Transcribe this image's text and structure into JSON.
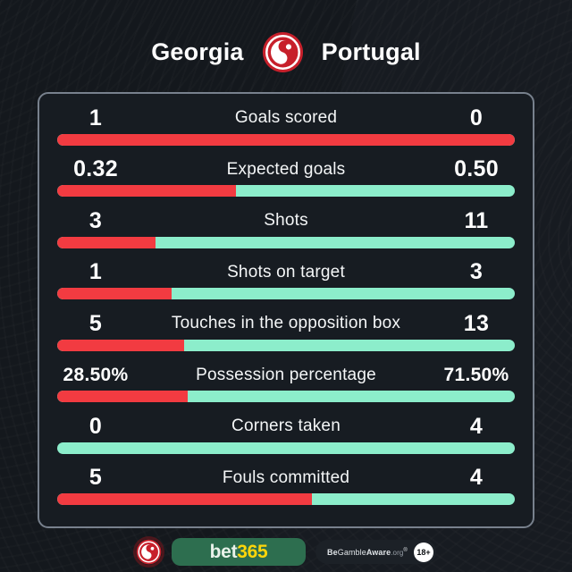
{
  "header": {
    "home_team": "Georgia",
    "away_team": "Portugal",
    "logo_icon": "bet365-swirl-icon"
  },
  "colors": {
    "home_bar_red": "#f23b41",
    "away_bar_teal": "#8cedcb",
    "card_border": "#78818d",
    "card_bg": "#171c22",
    "page_bg": "#14181d",
    "logo_red": "#c7202b",
    "bet365_green": "#2d6e4f",
    "bet365_yellow": "#ffd60a"
  },
  "stats": [
    {
      "label": "Goals scored",
      "home": "1",
      "away": "0",
      "home_pct": 100
    },
    {
      "label": "Expected goals",
      "home": "0.32",
      "away": "0.50",
      "home_pct": 39
    },
    {
      "label": "Shots",
      "home": "3",
      "away": "11",
      "home_pct": 21.4
    },
    {
      "label": "Shots on target",
      "home": "1",
      "away": "3",
      "home_pct": 25
    },
    {
      "label": "Touches in the opposition box",
      "home": "5",
      "away": "13",
      "home_pct": 27.8
    },
    {
      "label": "Possession percentage",
      "home": "28.50%",
      "away": "71.50%",
      "home_pct": 28.5
    },
    {
      "label": "Corners taken",
      "home": "0",
      "away": "4",
      "home_pct": 0
    },
    {
      "label": "Fouls committed",
      "home": "5",
      "away": "4",
      "home_pct": 55.6
    }
  ],
  "chart_data": {
    "type": "bar",
    "title": "Georgia vs Portugal match stats",
    "categories": [
      "Goals scored",
      "Expected goals",
      "Shots",
      "Shots on target",
      "Touches in the opposition box",
      "Possession percentage",
      "Corners taken",
      "Fouls committed"
    ],
    "series": [
      {
        "name": "Georgia",
        "values": [
          1,
          0.32,
          3,
          1,
          5,
          28.5,
          0,
          5
        ]
      },
      {
        "name": "Portugal",
        "values": [
          0,
          0.5,
          11,
          3,
          13,
          71.5,
          4,
          4
        ]
      }
    ],
    "layout": "paired horizontal share bars, red = Georgia share, teal = Portugal share"
  },
  "footer": {
    "bet365_bet": "bet",
    "bet365_365": "365",
    "aware_be": "Be",
    "aware_gamble": "Gamble",
    "aware_aware": "Aware",
    "aware_org": ".org",
    "aware_reg": "®",
    "age_badge": "18+"
  }
}
